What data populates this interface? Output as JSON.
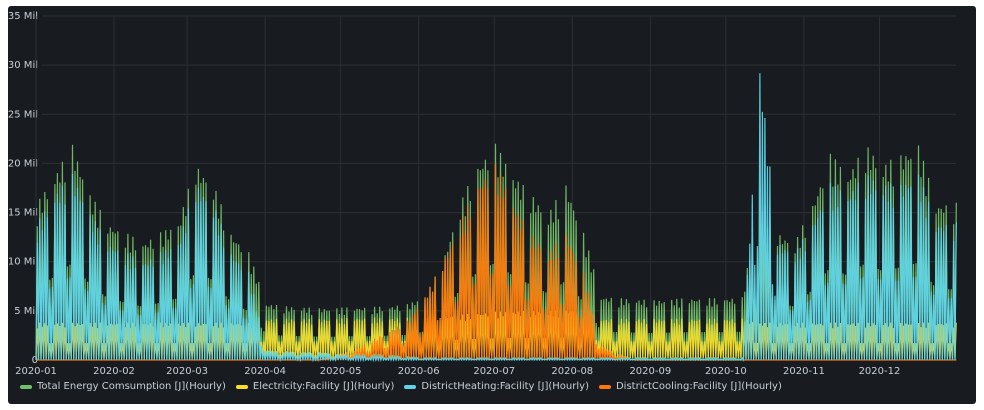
{
  "chart_data": {
    "type": "line",
    "title": "",
    "xlabel": "",
    "ylabel": "",
    "ylim": [
      0,
      35
    ],
    "y_unit": "Mil",
    "y_ticks": [
      "0",
      "5 Mil",
      "10 Mil",
      "15 Mil",
      "20 Mil",
      "25 Mil",
      "30 Mil",
      "35 Mil"
    ],
    "x_ticks": [
      "2020-01",
      "2020-02",
      "2020-03",
      "2020-04",
      "2020-05",
      "2020-06",
      "2020-07",
      "2020-08",
      "2020-09",
      "2020-10",
      "2020-11",
      "2020-12"
    ],
    "grid": true,
    "legend_position": "bottom-left",
    "x_daily_start": "2020-01-01",
    "x_daily_step_days": 7,
    "series": [
      {
        "name": "Total Energy Comsumption [J](Hourly)",
        "color": "#73bf69",
        "values": [
          16,
          19,
          22,
          17,
          14,
          13,
          12,
          13,
          14,
          20,
          18,
          13,
          11,
          5.8,
          5.5,
          5.4,
          5.3,
          5.3,
          5.4,
          5.4,
          5.5,
          5.7,
          6.5,
          10,
          16,
          20,
          22,
          19,
          17,
          15,
          18,
          13,
          6.5,
          6.3,
          6.2,
          6.1,
          6.2,
          6.3,
          6.3,
          6.3,
          6.4,
          17,
          13,
          12,
          16,
          21,
          19,
          22,
          20,
          21,
          22,
          16
        ]
      },
      {
        "name": "Electricity:Facility [J](Hourly)",
        "color": "#fade2a",
        "values": [
          3.8,
          3.8,
          3.8,
          3.8,
          3.8,
          3.8,
          3.8,
          3.8,
          3.8,
          3.8,
          3.8,
          3.8,
          3.8,
          4.2,
          4.2,
          4.2,
          4.2,
          4.2,
          4.3,
          4.3,
          4.3,
          4.3,
          4.4,
          4.5,
          4.6,
          4.8,
          4.9,
          5.0,
          5.0,
          5.0,
          5.1,
          5.2,
          4.2,
          4.2,
          4.2,
          4.2,
          4.2,
          4.2,
          4.2,
          4.2,
          4.2,
          3.8,
          3.8,
          3.8,
          3.8,
          3.8,
          3.8,
          3.8,
          3.8,
          3.8,
          3.8,
          3.8
        ]
      },
      {
        "name": "DistrictHeating:Facility [J](Hourly)",
        "color": "#5fd4e8",
        "values": [
          14,
          17,
          19,
          15,
          12,
          11,
          10,
          11,
          12,
          18,
          16,
          11,
          9,
          1.0,
          0.9,
          0.8,
          0.8,
          0.6,
          0.5,
          0.5,
          0.4,
          0.3,
          0.2,
          0.2,
          0.2,
          0.2,
          0.2,
          0.2,
          0.2,
          0.2,
          0.2,
          0.2,
          0.2,
          0.2,
          0.2,
          0.2,
          0.2,
          0.2,
          0.2,
          0.2,
          0.2,
          30,
          12,
          11,
          14,
          18,
          17,
          19,
          18,
          18,
          19,
          14
        ]
      },
      {
        "name": "DistrictCooling:Facility [J](Hourly)",
        "color": "#ff780a",
        "values": [
          0,
          0,
          0,
          0,
          0,
          0,
          0,
          0,
          0,
          0,
          0,
          0,
          0,
          0,
          0,
          0,
          0,
          0.5,
          1.0,
          2.0,
          3.0,
          4.0,
          6.5,
          10,
          14,
          18,
          20,
          16,
          13,
          11,
          13,
          9,
          1.5,
          0.5,
          0,
          0,
          0,
          0,
          0,
          0,
          0,
          0,
          0,
          0,
          0,
          0,
          0,
          0,
          0,
          0,
          0,
          0
        ]
      }
    ]
  }
}
